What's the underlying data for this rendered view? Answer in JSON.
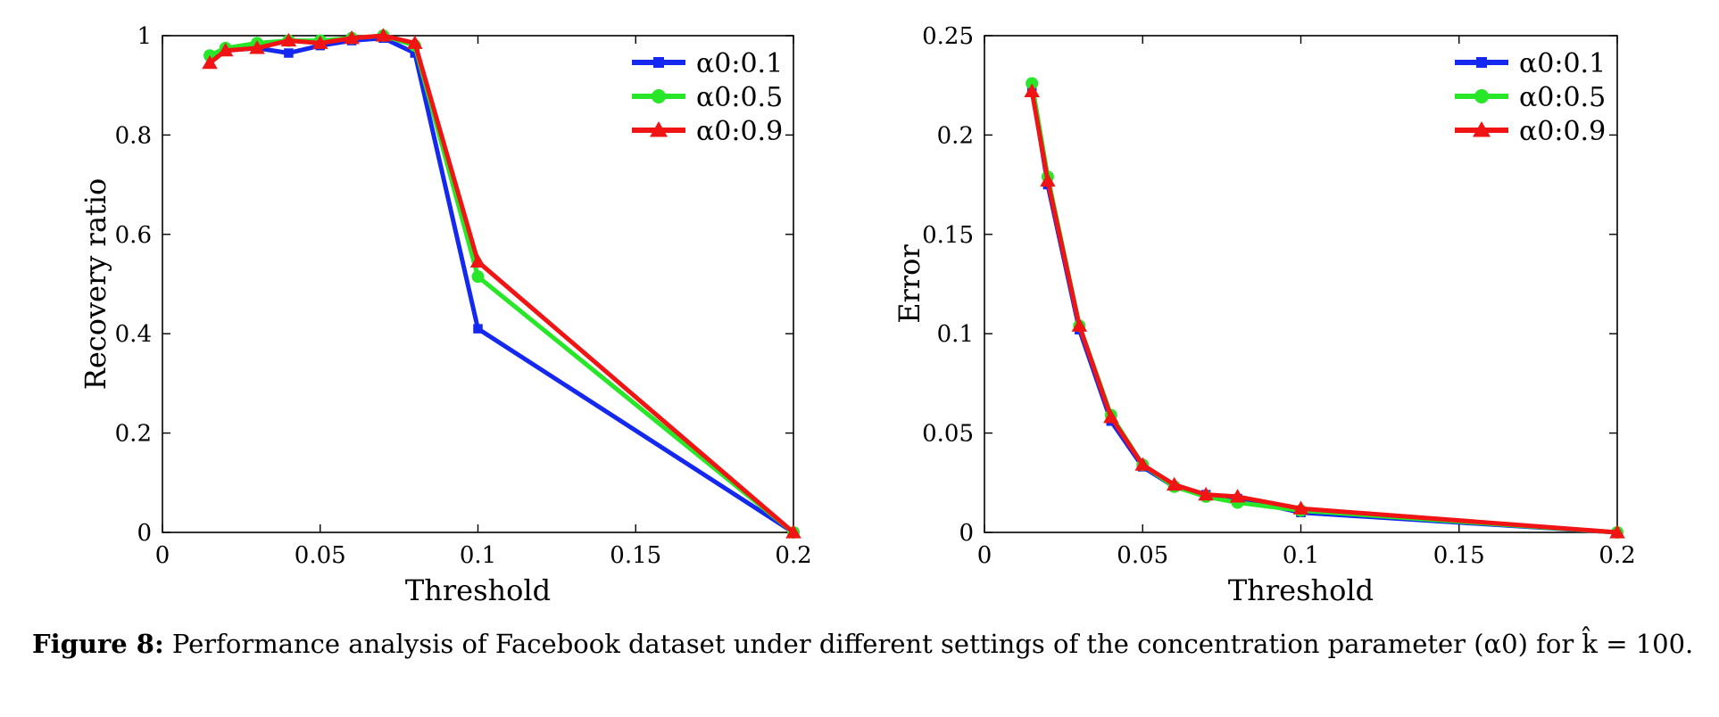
{
  "caption": {
    "label": "Figure 8:",
    "text": "Performance analysis of Facebook dataset under different settings of the concentration parameter (α0) for k̂ = 100."
  },
  "chart_data": [
    {
      "type": "line",
      "title": "",
      "xlabel": "Threshold",
      "ylabel": "Recovery ratio",
      "xlim": [
        0,
        0.2
      ],
      "ylim": [
        0,
        1
      ],
      "xticks": [
        0,
        0.05,
        0.1,
        0.15,
        0.2
      ],
      "xtick_labels": [
        "0",
        "0.05",
        "0.1",
        "0.15",
        "0.2"
      ],
      "yticks": [
        0,
        0.2,
        0.4,
        0.6,
        0.8,
        1
      ],
      "ytick_labels": [
        "0",
        "0.2",
        "0.4",
        "0.6",
        "0.8",
        "1"
      ],
      "legend_position": "top-right",
      "grid": false,
      "x": [
        0.015,
        0.02,
        0.03,
        0.04,
        0.05,
        0.06,
        0.07,
        0.08,
        0.1,
        0.2
      ],
      "series": [
        {
          "name": "α0:0.1",
          "color": "#1428f0",
          "marker": "square",
          "values": [
            0.96,
            0.97,
            0.975,
            0.965,
            0.98,
            0.99,
            0.995,
            0.965,
            0.41,
            0.0
          ]
        },
        {
          "name": "α0:0.5",
          "color": "#28e628",
          "marker": "circle",
          "values": [
            0.96,
            0.975,
            0.985,
            0.99,
            0.99,
            0.995,
            1.0,
            0.98,
            0.515,
            0.0
          ]
        },
        {
          "name": "α0:0.9",
          "color": "#f01414",
          "marker": "triangle",
          "values": [
            0.945,
            0.97,
            0.975,
            0.99,
            0.985,
            0.995,
            1.0,
            0.985,
            0.545,
            0.0
          ]
        }
      ]
    },
    {
      "type": "line",
      "title": "",
      "xlabel": "Threshold",
      "ylabel": "Error",
      "xlim": [
        0,
        0.2
      ],
      "ylim": [
        0,
        0.25
      ],
      "xticks": [
        0,
        0.05,
        0.1,
        0.15,
        0.2
      ],
      "xtick_labels": [
        "0",
        "0.05",
        "0.1",
        "0.15",
        "0.2"
      ],
      "yticks": [
        0,
        0.05,
        0.1,
        0.15,
        0.2,
        0.25
      ],
      "ytick_labels": [
        "0",
        "0.05",
        "0.1",
        "0.15",
        "0.2",
        "0.25"
      ],
      "legend_position": "top-right",
      "grid": false,
      "x": [
        0.015,
        0.02,
        0.03,
        0.04,
        0.05,
        0.06,
        0.07,
        0.08,
        0.1,
        0.2
      ],
      "series": [
        {
          "name": "α0:0.1",
          "color": "#1428f0",
          "marker": "square",
          "values": [
            0.224,
            0.175,
            0.102,
            0.056,
            0.033,
            0.023,
            0.019,
            0.017,
            0.01,
            0.0
          ]
        },
        {
          "name": "α0:0.5",
          "color": "#28e628",
          "marker": "circle",
          "values": [
            0.226,
            0.179,
            0.104,
            0.059,
            0.034,
            0.023,
            0.018,
            0.015,
            0.011,
            0.0
          ]
        },
        {
          "name": "α0:0.9",
          "color": "#f01414",
          "marker": "triangle",
          "values": [
            0.222,
            0.177,
            0.104,
            0.058,
            0.034,
            0.024,
            0.019,
            0.018,
            0.012,
            0.0
          ]
        }
      ]
    }
  ]
}
